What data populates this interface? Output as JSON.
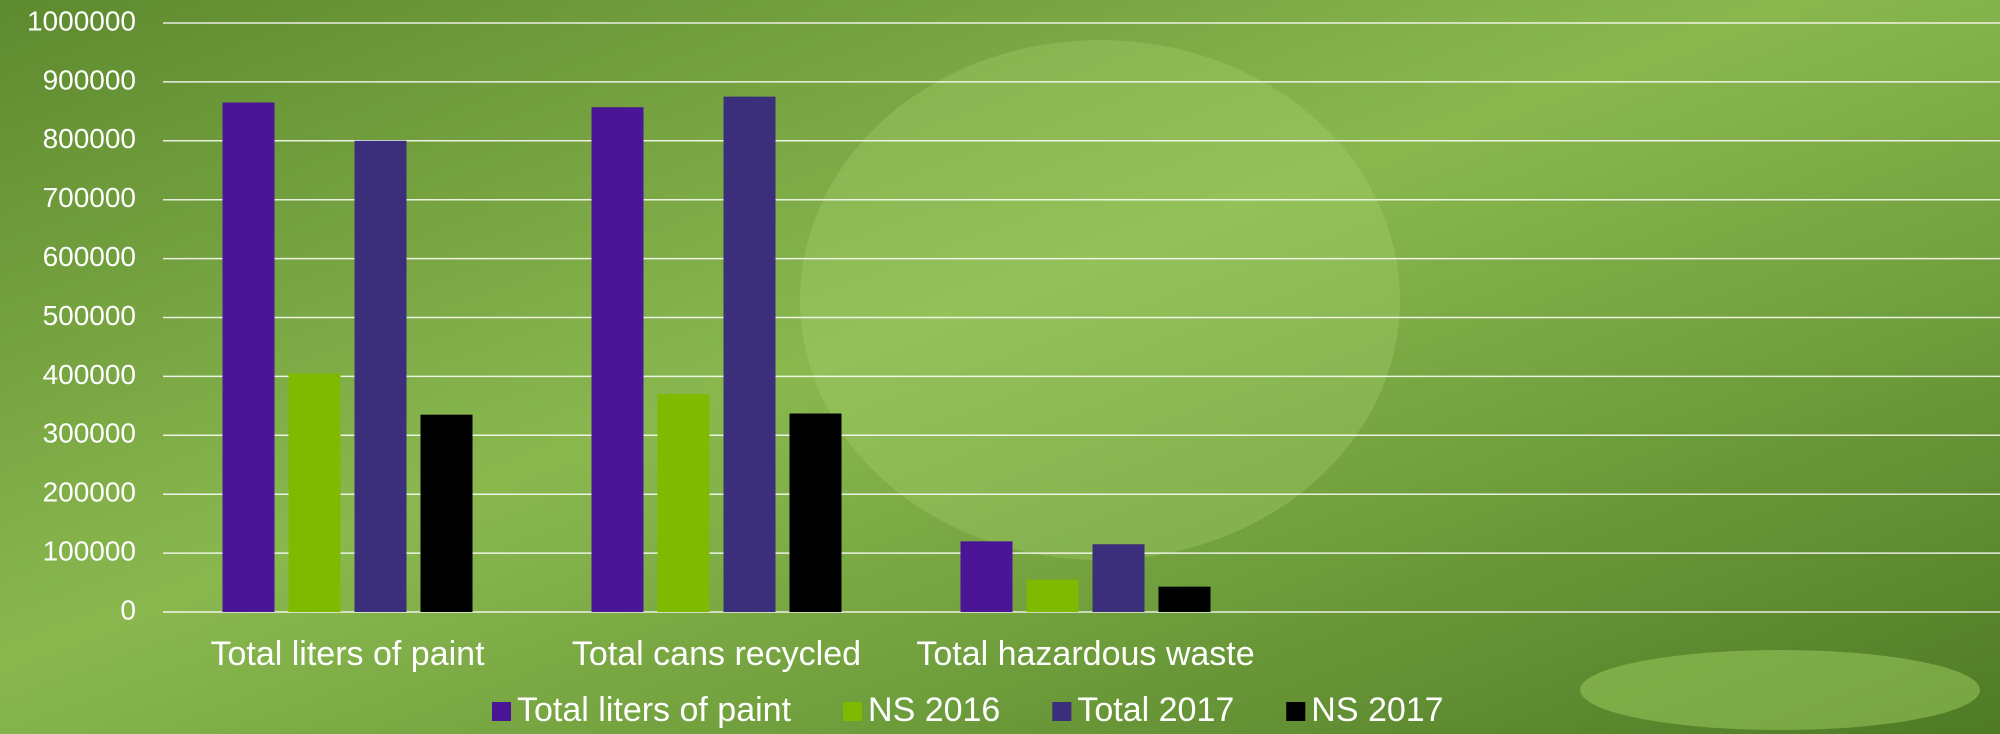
{
  "chart_data": {
    "type": "bar",
    "categories": [
      "Total liters of paint",
      "Total cans recycled",
      "Total hazardous waste"
    ],
    "series": [
      {
        "name": "Total liters of paint",
        "color": "#4a1597",
        "values": [
          865000,
          857000,
          120000
        ]
      },
      {
        "name": "NS 2016",
        "color": "#7fba00",
        "values": [
          405000,
          370000,
          55000
        ]
      },
      {
        "name": "Total 2017",
        "color": "#3b2e7a",
        "values": [
          800000,
          875000,
          115000
        ]
      },
      {
        "name": "NS 2017",
        "color": "#000000",
        "values": [
          335000,
          337000,
          43000
        ]
      }
    ],
    "ylim": [
      0,
      1000000
    ],
    "yticks": [
      0,
      100000,
      200000,
      300000,
      400000,
      500000,
      600000,
      700000,
      800000,
      900000,
      1000000
    ],
    "grid": true,
    "legend": "bottom"
  }
}
